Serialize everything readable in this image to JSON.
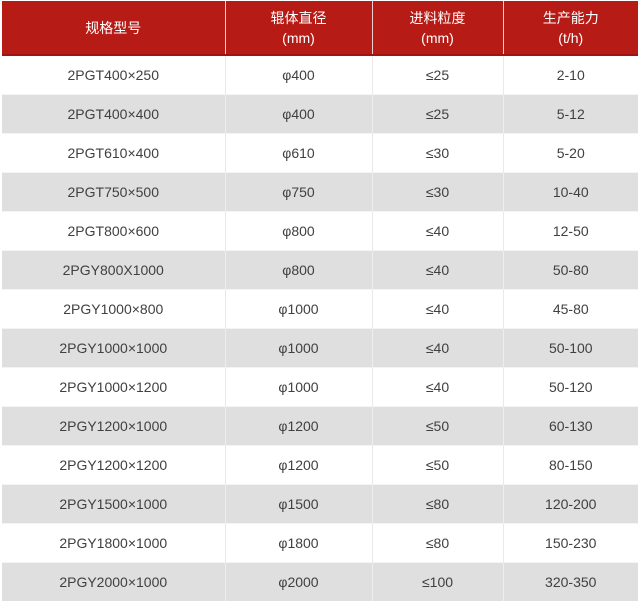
{
  "table": {
    "columns": [
      {
        "title": "规格型号",
        "unit": ""
      },
      {
        "title": "辊体直径",
        "unit": "(mm)"
      },
      {
        "title": "进料粒度",
        "unit": "(mm)"
      },
      {
        "title": "生产能力",
        "unit": "(t/h)"
      }
    ]
  },
  "chart_data": {
    "type": "table",
    "columns": [
      "规格型号",
      "辊体直径 (mm)",
      "进料粒度 (mm)",
      "生产能力 (t/h)"
    ],
    "rows": [
      [
        "2PGT400×250",
        "φ400",
        "≤25",
        "2-10"
      ],
      [
        "2PGT400×400",
        "φ400",
        "≤25",
        "5-12"
      ],
      [
        "2PGT610×400",
        "φ610",
        "≤30",
        "5-20"
      ],
      [
        "2PGT750×500",
        "φ750",
        "≤30",
        "10-40"
      ],
      [
        "2PGT800×600",
        "φ800",
        "≤40",
        "12-50"
      ],
      [
        "2PGY800X1000",
        "φ800",
        "≤40",
        "50-80"
      ],
      [
        "2PGY1000×800",
        "φ1000",
        "≤40",
        "45-80"
      ],
      [
        "2PGY1000×1000",
        "φ1000",
        "≤40",
        "50-100"
      ],
      [
        "2PGY1000×1200",
        "φ1000",
        "≤40",
        "50-120"
      ],
      [
        "2PGY1200×1000",
        "φ1200",
        "≤50",
        "60-130"
      ],
      [
        "2PGY1200×1200",
        "φ1200",
        "≤50",
        "80-150"
      ],
      [
        "2PGY1500×1000",
        "φ1500",
        "≤80",
        "120-200"
      ],
      [
        "2PGY1800×1000",
        "φ1800",
        "≤80",
        "150-230"
      ],
      [
        "2PGY2000×1000",
        "φ2000",
        "≤100",
        "320-350"
      ]
    ]
  },
  "colors": {
    "header_bg": "#b61b16",
    "header_text": "#ffffff",
    "row_bg": "#ffffff",
    "row_alt_bg": "#dfdfdf",
    "body_text": "#404040"
  }
}
